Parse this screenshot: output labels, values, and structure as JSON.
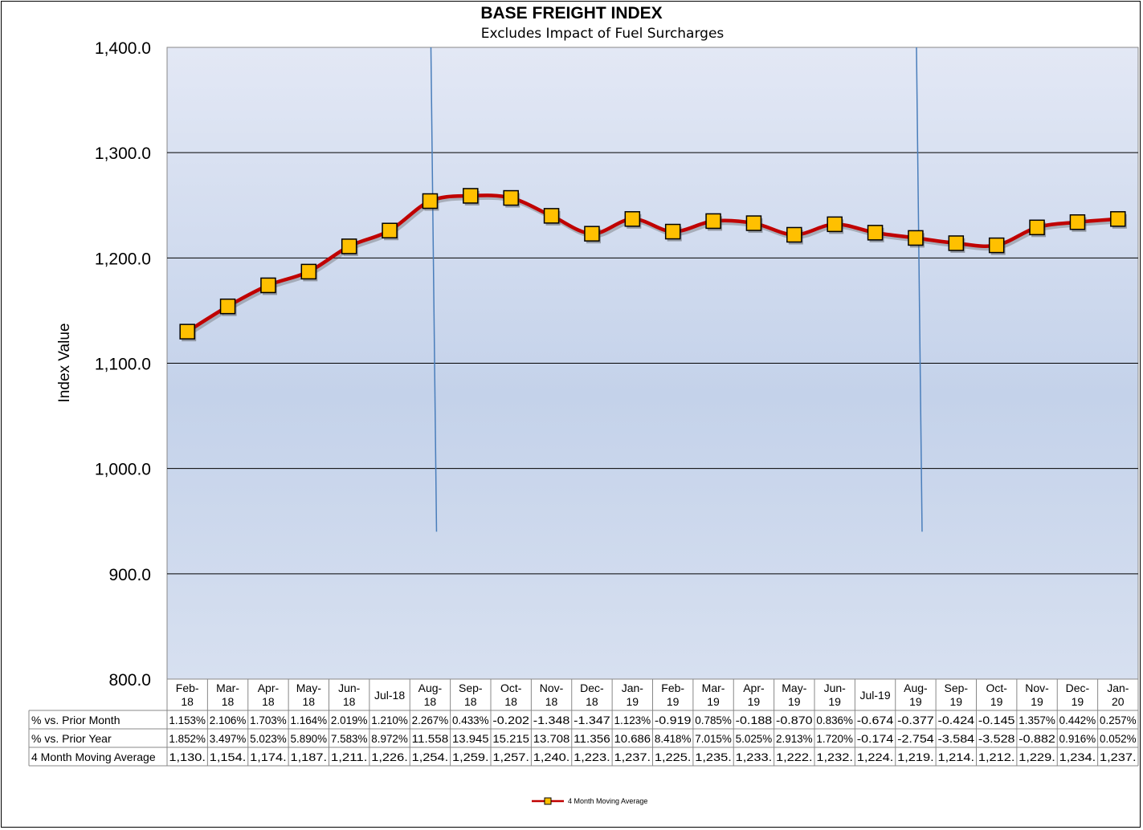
{
  "chart_data": {
    "type": "line",
    "title": "BASE FREIGHT INDEX",
    "subtitle": "Excludes Impact of Fuel Surcharges",
    "ylabel": "Index Value",
    "ylim": [
      800,
      1400
    ],
    "yticks": [
      "1,400.0",
      "1,300.0",
      "1,200.0",
      "1,100.0",
      "1,000.0",
      "900.0",
      "800.0"
    ],
    "ytick_values": [
      1400,
      1300,
      1200,
      1100,
      1000,
      900,
      800
    ],
    "grid": true,
    "categories": [
      [
        "Feb-",
        "18"
      ],
      [
        "Mar-",
        "18"
      ],
      [
        "Apr-",
        "18"
      ],
      [
        "May-",
        "18"
      ],
      [
        "Jun-",
        "18"
      ],
      [
        "Jul-18"
      ],
      [
        "Aug-",
        "18"
      ],
      [
        "Sep-",
        "18"
      ],
      [
        "Oct-",
        "18"
      ],
      [
        "Nov-",
        "18"
      ],
      [
        "Dec-",
        "18"
      ],
      [
        "Jan-",
        "19"
      ],
      [
        "Feb-",
        "19"
      ],
      [
        "Mar-",
        "19"
      ],
      [
        "Apr-",
        "19"
      ],
      [
        "May-",
        "19"
      ],
      [
        "Jun-",
        "19"
      ],
      [
        "Jul-19"
      ],
      [
        "Aug-",
        "19"
      ],
      [
        "Sep-",
        "19"
      ],
      [
        "Oct-",
        "19"
      ],
      [
        "Nov-",
        "19"
      ],
      [
        "Dec-",
        "19"
      ],
      [
        "Jan-",
        "20"
      ]
    ],
    "series": [
      {
        "name": "4 Month Moving Average",
        "color": "#c00000",
        "marker_color": "#ffc000",
        "values": [
          1130,
          1154,
          1174,
          1187,
          1211,
          1226,
          1254,
          1259,
          1257,
          1240,
          1223,
          1237,
          1225,
          1235,
          1233,
          1222,
          1232,
          1224,
          1219,
          1214,
          1212,
          1229,
          1234,
          1237
        ]
      }
    ],
    "vertical_markers": [
      "Aug-18",
      "Aug-19"
    ],
    "table": {
      "rows": [
        {
          "label": "% vs. Prior Month",
          "values": [
            "1.153%",
            "2.106%",
            "1.703%",
            "1.164%",
            "2.019%",
            "1.210%",
            "2.267%",
            "0.433%",
            "-0.202",
            "-1.348",
            "-1.347",
            "1.123%",
            "-0.919",
            "0.785%",
            "-0.188",
            "-0.870",
            "0.836%",
            "-0.674",
            "-0.377",
            "-0.424",
            "-0.145",
            "1.357%",
            "0.442%",
            "0.257%"
          ]
        },
        {
          "label": "% vs. Prior Year",
          "values": [
            "1.852%",
            "3.497%",
            "5.023%",
            "5.890%",
            "7.583%",
            "8.972%",
            "11.558",
            "13.945",
            "15.215",
            "13.708",
            "11.356",
            "10.686",
            "8.418%",
            "7.015%",
            "5.025%",
            "2.913%",
            "1.720%",
            "-0.174",
            "-2.754",
            "-3.584",
            "-3.528",
            "-0.882",
            "0.916%",
            "0.052%"
          ]
        },
        {
          "label": "4 Month Moving Average",
          "values": [
            "1,130.",
            "1,154.",
            "1,174.",
            "1,187.",
            "1,211.",
            "1,226.",
            "1,254.",
            "1,259.",
            "1,257.",
            "1,240.",
            "1,223.",
            "1,237.",
            "1,225.",
            "1,235.",
            "1,233.",
            "1,222.",
            "1,232.",
            "1,224.",
            "1,219.",
            "1,214.",
            "1,212.",
            "1,229.",
            "1,234.",
            "1,237."
          ]
        }
      ]
    },
    "legend": {
      "position": "bottom-center",
      "label": "4 Month Moving Average"
    }
  }
}
